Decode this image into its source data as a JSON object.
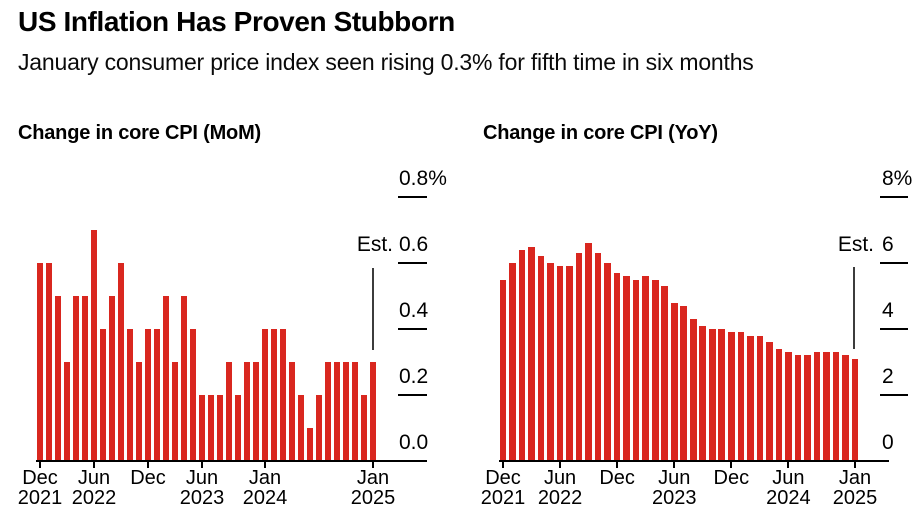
{
  "header": {
    "title": "US Inflation Has Proven Stubborn",
    "subtitle": "January consumer price index seen rising 0.3% for fifth time in six months"
  },
  "est_label": "Est.",
  "colors": {
    "bar": "#d9271f",
    "est_line": "#3c3c3c",
    "axis": "#000000"
  },
  "chart_data": [
    {
      "type": "bar",
      "title": "Change in core CPI (MoM)",
      "unit": "percent",
      "x": [
        "Dec 2021",
        "Jan 2022",
        "Feb 2022",
        "Mar 2022",
        "Apr 2022",
        "May 2022",
        "Jun 2022",
        "Jul 2022",
        "Aug 2022",
        "Sep 2022",
        "Oct 2022",
        "Nov 2022",
        "Dec 2022",
        "Jan 2023",
        "Feb 2023",
        "Mar 2023",
        "Apr 2023",
        "May 2023",
        "Jun 2023",
        "Jul 2023",
        "Aug 2023",
        "Sep 2023",
        "Oct 2023",
        "Nov 2023",
        "Dec 2023",
        "Jan 2024",
        "Feb 2024",
        "Mar 2024",
        "Apr 2024",
        "May 2024",
        "Jun 2024",
        "Jul 2024",
        "Aug 2024",
        "Sep 2024",
        "Oct 2024",
        "Nov 2024",
        "Dec 2024",
        "Jan 2025"
      ],
      "values": [
        0.6,
        0.6,
        0.5,
        0.3,
        0.5,
        0.5,
        0.7,
        0.4,
        0.5,
        0.6,
        0.4,
        0.3,
        0.4,
        0.4,
        0.5,
        0.3,
        0.5,
        0.4,
        0.2,
        0.2,
        0.2,
        0.3,
        0.2,
        0.3,
        0.3,
        0.4,
        0.4,
        0.4,
        0.3,
        0.2,
        0.1,
        0.2,
        0.3,
        0.3,
        0.3,
        0.3,
        0.2,
        0.3
      ],
      "est_index": 37,
      "est_value": 0.3,
      "ylim": [
        0,
        0.88
      ],
      "grid": false,
      "y_ticks": [
        {
          "label": "0.8%",
          "value": 0.8
        },
        {
          "label": "0.6",
          "value": 0.6
        },
        {
          "label": "0.4",
          "value": 0.4
        },
        {
          "label": "0.2",
          "value": 0.2
        },
        {
          "label": "0.0",
          "value": 0.0
        }
      ],
      "x_ticks": [
        {
          "index": 0,
          "month": "Dec",
          "year": "2021"
        },
        {
          "index": 6,
          "month": "Jun",
          "year": "2022"
        },
        {
          "index": 12,
          "month": "Dec",
          "year": ""
        },
        {
          "index": 18,
          "month": "Jun",
          "year": "2023"
        },
        {
          "index": 25,
          "month": "Jan",
          "year": "2024"
        },
        {
          "index": 37,
          "month": "Jan",
          "year": "2025"
        }
      ]
    },
    {
      "type": "bar",
      "title": "Change in core CPI (YoY)",
      "unit": "percent",
      "x": [
        "Dec 2021",
        "Jan 2022",
        "Feb 2022",
        "Mar 2022",
        "Apr 2022",
        "May 2022",
        "Jun 2022",
        "Jul 2022",
        "Aug 2022",
        "Sep 2022",
        "Oct 2022",
        "Nov 2022",
        "Dec 2022",
        "Jan 2023",
        "Feb 2023",
        "Mar 2023",
        "Apr 2023",
        "May 2023",
        "Jun 2023",
        "Jul 2023",
        "Aug 2023",
        "Sep 2023",
        "Oct 2023",
        "Nov 2023",
        "Dec 2023",
        "Jan 2024",
        "Feb 2024",
        "Mar 2024",
        "Apr 2024",
        "May 2024",
        "Jun 2024",
        "Jul 2024",
        "Aug 2024",
        "Sep 2024",
        "Oct 2024",
        "Nov 2024",
        "Dec 2024",
        "Jan 2025"
      ],
      "values": [
        5.5,
        6.0,
        6.4,
        6.5,
        6.2,
        6.0,
        5.9,
        5.9,
        6.3,
        6.6,
        6.3,
        6.0,
        5.7,
        5.6,
        5.5,
        5.6,
        5.5,
        5.3,
        4.8,
        4.7,
        4.3,
        4.1,
        4.0,
        4.0,
        3.9,
        3.9,
        3.8,
        3.8,
        3.6,
        3.4,
        3.3,
        3.2,
        3.2,
        3.3,
        3.3,
        3.3,
        3.2,
        3.1
      ],
      "est_index": 37,
      "est_value": 3.1,
      "ylim": [
        0,
        8.8
      ],
      "grid": false,
      "y_ticks": [
        {
          "label": "8%",
          "value": 8
        },
        {
          "label": "6",
          "value": 6
        },
        {
          "label": "4",
          "value": 4
        },
        {
          "label": "2",
          "value": 2
        },
        {
          "label": "0",
          "value": 0
        }
      ],
      "x_ticks": [
        {
          "index": 0,
          "month": "Dec",
          "year": "2021"
        },
        {
          "index": 6,
          "month": "Jun",
          "year": "2022"
        },
        {
          "index": 12,
          "month": "Dec",
          "year": ""
        },
        {
          "index": 18,
          "month": "Jun",
          "year": "2023"
        },
        {
          "index": 24,
          "month": "Dec",
          "year": ""
        },
        {
          "index": 30,
          "month": "Jun",
          "year": "2024"
        },
        {
          "index": 37,
          "month": "Jan",
          "year": "2025"
        }
      ]
    }
  ]
}
